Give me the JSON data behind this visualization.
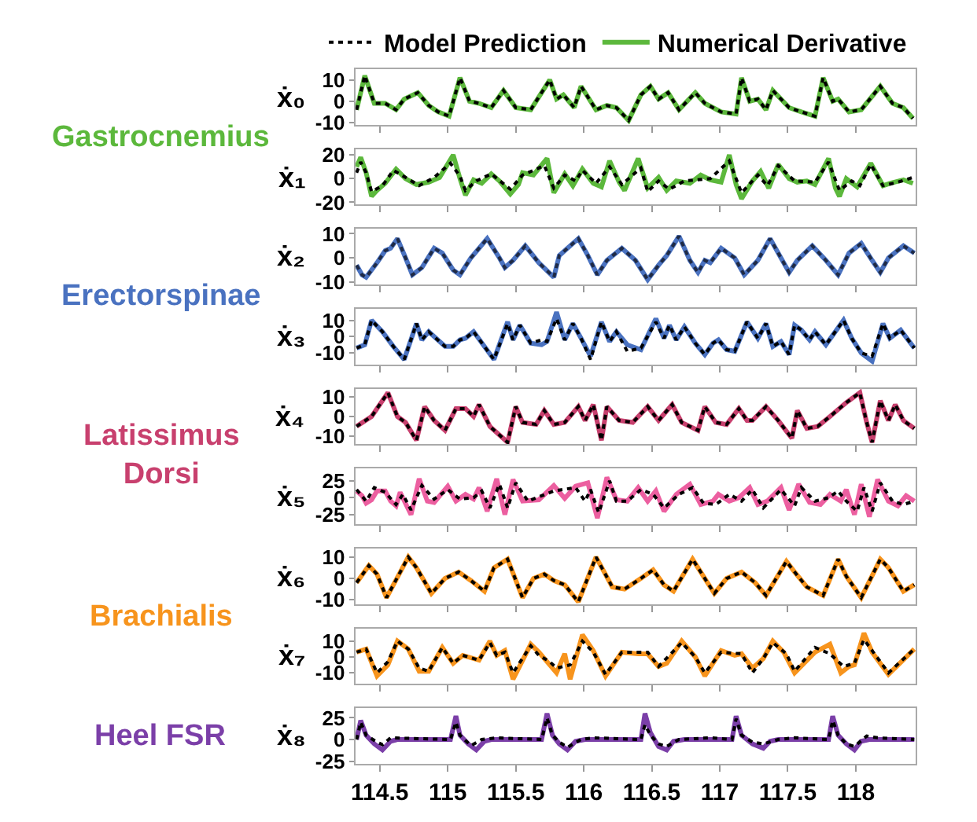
{
  "chart_data": [
    {
      "type": "line",
      "ylabel": "ẋ₀",
      "legend": "top",
      "tick_labels": "y",
      "annotations": [
        "Gastrocnemius"
      ],
      "xlim": [
        114.32,
        118.44
      ],
      "ylim": [
        -11,
        15
      ],
      "xticks": [
        114.5,
        115,
        115.5,
        116,
        116.5,
        117,
        117.5,
        118
      ],
      "yticks": [
        -10,
        0,
        10
      ],
      "x": [
        114.33,
        114.39,
        114.46,
        114.54,
        114.62,
        114.68,
        114.78,
        114.86,
        114.93,
        115.01,
        115.09,
        115.16,
        115.23,
        115.32,
        115.41,
        115.5,
        115.61,
        115.75,
        115.8,
        115.85,
        115.93,
        115.98,
        116.09,
        116.17,
        116.24,
        116.33,
        116.42,
        116.49,
        116.55,
        116.62,
        116.7,
        116.82,
        116.89,
        117.01,
        117.12,
        117.16,
        117.22,
        117.28,
        117.34,
        117.39,
        117.51,
        117.6,
        117.7,
        117.76,
        117.83,
        117.87,
        117.95,
        118.04,
        118.18,
        118.27,
        118.35,
        118.42
      ],
      "series": [
        {
          "name": "Model Prediction",
          "color": "#000000",
          "line_style": "dotted",
          "values": [
            -4,
            12,
            -1,
            -1,
            -4,
            1,
            4,
            -2,
            -5,
            -7,
            11,
            0,
            -1,
            -3,
            5,
            -3,
            -4,
            10,
            1,
            3,
            -3,
            7,
            -4,
            -2,
            -3,
            -9,
            3,
            7,
            1,
            4,
            -4,
            4,
            -1,
            -5,
            -6,
            11,
            0,
            1,
            -4,
            5,
            -3,
            -5,
            -7,
            11,
            0,
            1,
            -5,
            -4,
            7,
            -1,
            -3,
            -8
          ]
        },
        {
          "name": "Numerical Derivative",
          "color": "#5cb83c",
          "line_style": "solid",
          "values": [
            -4,
            12,
            -1,
            -1,
            -4,
            1,
            4,
            -2,
            -5,
            -7,
            11,
            0,
            -1,
            -3,
            5,
            -3,
            -4,
            10,
            1,
            3,
            -3,
            7,
            -4,
            -2,
            -3,
            -9,
            3,
            7,
            1,
            4,
            -4,
            4,
            -1,
            -5,
            -6,
            11,
            0,
            1,
            -4,
            5,
            -3,
            -5,
            -7,
            11,
            0,
            1,
            -5,
            -4,
            7,
            -1,
            -3,
            -8
          ]
        }
      ]
    },
    {
      "type": "line",
      "ylabel": "ẋ₁",
      "tick_labels": "y",
      "xlim": [
        114.32,
        118.44
      ],
      "ylim": [
        -22,
        25
      ],
      "xticks": [
        114.5,
        115,
        115.5,
        116,
        116.5,
        117,
        117.5,
        118
      ],
      "yticks": [
        -20,
        0,
        20
      ],
      "series": [
        {
          "color": "#000000",
          "line_style": "dotted",
          "x": [
            114.33,
            114.36,
            114.4,
            114.44,
            114.52,
            114.6,
            114.69,
            114.79,
            114.9,
            115.02,
            115.09,
            115.13,
            115.21,
            115.32,
            115.46,
            115.55,
            115.71,
            115.78,
            115.86,
            115.94,
            115.99,
            116.09,
            116.19,
            116.28,
            116.42,
            116.47,
            116.55,
            116.63,
            116.74,
            116.93,
            117.07,
            117.16,
            117.28,
            117.35,
            117.43,
            117.55,
            117.7,
            117.8,
            117.88,
            117.97,
            118.03,
            118.11,
            118.2,
            118.31,
            118.42
          ],
          "values": [
            5,
            14,
            5,
            -11,
            -6,
            7,
            1,
            -6,
            1,
            13,
            2,
            -10,
            -2,
            4,
            -9,
            3,
            11,
            -8,
            3,
            -2,
            7,
            -4,
            10,
            -5,
            9,
            -11,
            -2,
            -9,
            -2,
            0,
            15,
            -12,
            3,
            -6,
            11,
            -2,
            -3,
            14,
            -10,
            -2,
            -6,
            12,
            -6,
            -3,
            1
          ]
        },
        {
          "color": "#5cb83c",
          "line_style": "solid",
          "x": [
            114.33,
            114.36,
            114.4,
            114.44,
            114.48,
            114.54,
            114.62,
            114.69,
            114.77,
            114.86,
            114.94,
            115.04,
            115.09,
            115.13,
            115.19,
            115.25,
            115.32,
            115.38,
            115.46,
            115.52,
            115.55,
            115.63,
            115.73,
            115.78,
            115.86,
            115.92,
            115.99,
            116.07,
            116.13,
            116.19,
            116.26,
            116.3,
            116.4,
            116.47,
            116.55,
            116.61,
            116.68,
            116.78,
            116.86,
            116.93,
            117.01,
            117.07,
            117.12,
            117.16,
            117.24,
            117.3,
            117.36,
            117.43,
            117.51,
            117.57,
            117.64,
            117.7,
            117.8,
            117.85,
            117.88,
            117.93,
            118.01,
            118.11,
            118.2,
            118.25,
            118.35,
            118.42
          ],
          "values": [
            10,
            18,
            5,
            -15,
            -10,
            -4,
            8,
            0,
            -5,
            -3,
            1,
            20,
            0,
            -14,
            -1,
            -4,
            4,
            -2,
            -13,
            -5,
            5,
            3,
            17,
            -12,
            4,
            -6,
            8,
            -4,
            -7,
            15,
            -3,
            -10,
            17,
            -8,
            1,
            -10,
            -2,
            -4,
            3,
            -1,
            -3,
            20,
            -5,
            -17,
            -2,
            6,
            -8,
            12,
            0,
            -3,
            -2,
            -5,
            17,
            -8,
            -15,
            0,
            -7,
            13,
            -6,
            -4,
            -1,
            -4
          ]
        }
      ]
    },
    {
      "type": "line",
      "ylabel": "ẋ₂",
      "tick_labels": "y",
      "annotations": [
        "Erectorspinae"
      ],
      "xlim": [
        114.32,
        118.44
      ],
      "ylim": [
        -11,
        12
      ],
      "xticks": [
        114.5,
        115,
        115.5,
        116,
        116.5,
        117,
        117.5,
        118
      ],
      "yticks": [
        -10,
        0,
        10
      ],
      "x": [
        114.33,
        114.37,
        114.4,
        114.48,
        114.54,
        114.58,
        114.63,
        114.69,
        114.74,
        114.81,
        114.9,
        114.96,
        115.04,
        115.09,
        115.17,
        115.29,
        115.38,
        115.42,
        115.48,
        115.57,
        115.67,
        115.78,
        115.82,
        115.86,
        115.96,
        116.03,
        116.1,
        116.17,
        116.28,
        116.38,
        116.47,
        116.55,
        116.61,
        116.7,
        116.78,
        116.84,
        116.89,
        116.93,
        117.01,
        117.11,
        117.18,
        117.28,
        117.37,
        117.45,
        117.51,
        117.57,
        117.68,
        117.78,
        117.87,
        117.95,
        118.04,
        118.12,
        118.18,
        118.24,
        118.35,
        118.43
      ],
      "series": [
        {
          "color": "#1f2a44",
          "line_style": "dotted",
          "values": [
            -3,
            -7,
            -8,
            -2,
            3,
            4,
            8,
            0,
            -7,
            -4,
            4,
            2,
            -5,
            -7,
            0,
            8,
            0,
            -4,
            -1,
            5,
            -2,
            -8,
            1,
            3,
            8,
            1,
            -7,
            -1,
            4,
            -1,
            -9,
            -3,
            1,
            9,
            -1,
            -6,
            -1,
            -2,
            4,
            0,
            -7,
            -1,
            8,
            0,
            -6,
            -1,
            5,
            -1,
            -7,
            2,
            6,
            -1,
            -6,
            0,
            5,
            2
          ]
        },
        {
          "color": "#4a72c0",
          "line_style": "solid",
          "values": [
            -3,
            -7,
            -8,
            -2,
            3,
            4,
            8,
            0,
            -7,
            -4,
            4,
            2,
            -5,
            -7,
            0,
            8,
            0,
            -4,
            -1,
            5,
            -2,
            -8,
            1,
            3,
            8,
            1,
            -7,
            -1,
            4,
            -1,
            -9,
            -3,
            1,
            9,
            -1,
            -6,
            -1,
            -2,
            4,
            0,
            -7,
            -1,
            8,
            0,
            -6,
            -1,
            5,
            -1,
            -7,
            2,
            6,
            -1,
            -6,
            0,
            5,
            2
          ]
        }
      ]
    },
    {
      "type": "line",
      "ylabel": "ẋ₃",
      "tick_labels": "y",
      "xlim": [
        114.32,
        118.44
      ],
      "ylim": [
        -17,
        17
      ],
      "xticks": [
        114.5,
        115,
        115.5,
        116,
        116.5,
        117,
        117.5,
        118
      ],
      "yticks": [
        -10,
        0,
        10
      ],
      "x": [
        114.33,
        114.39,
        114.44,
        114.52,
        114.6,
        114.68,
        114.77,
        114.81,
        114.86,
        114.98,
        115.04,
        115.09,
        115.13,
        115.19,
        115.34,
        115.44,
        115.48,
        115.53,
        115.61,
        115.69,
        115.73,
        115.8,
        115.86,
        115.92,
        115.98,
        116.05,
        116.13,
        116.19,
        116.24,
        116.32,
        116.42,
        116.53,
        116.59,
        116.63,
        116.68,
        116.74,
        116.82,
        116.89,
        116.95,
        116.99,
        117.05,
        117.11,
        117.2,
        117.28,
        117.34,
        117.39,
        117.45,
        117.51,
        117.55,
        117.6,
        117.66,
        117.7,
        117.78,
        117.91,
        117.97,
        118.04,
        118.12,
        118.2,
        118.25,
        118.33,
        118.43
      ],
      "series": [
        {
          "color": "#000000",
          "line_style": "dotted",
          "values": [
            -7,
            -5,
            10,
            3,
            -6,
            -14,
            8,
            -2,
            3,
            -6,
            -6,
            -2,
            -1,
            3,
            -14,
            8,
            -2,
            7,
            -4,
            -2,
            -3,
            11,
            -2,
            8,
            -1,
            -14,
            9,
            -3,
            3,
            -9,
            -7,
            9,
            -1,
            7,
            -2,
            6,
            -4,
            -11,
            -4,
            -2,
            -8,
            -9,
            9,
            -1,
            8,
            -6,
            -3,
            -11,
            7,
            4,
            -2,
            3,
            -5,
            10,
            -1,
            -10,
            -12,
            8,
            -1,
            4,
            -7
          ]
        },
        {
          "color": "#4a72c0",
          "line_style": "solid",
          "values": [
            -7,
            -5,
            10,
            3,
            -6,
            -14,
            8,
            -2,
            3,
            -6,
            -6,
            -2,
            -1,
            3,
            -14,
            9,
            -2,
            7,
            -4,
            -5,
            -3,
            15,
            -2,
            8,
            -1,
            -12,
            9,
            -3,
            3,
            -5,
            -8,
            11,
            -1,
            7,
            -2,
            6,
            -4,
            -11,
            -4,
            -2,
            -8,
            -9,
            9,
            -1,
            8,
            -6,
            -3,
            -11,
            7,
            4,
            -2,
            3,
            -5,
            10,
            -1,
            -10,
            -15,
            8,
            -1,
            4,
            -7
          ]
        }
      ]
    },
    {
      "type": "line",
      "ylabel": "ẋ₄",
      "tick_labels": "y",
      "annotations": [
        "Latissimus\nDorsi"
      ],
      "xlim": [
        114.32,
        118.44
      ],
      "ylim": [
        -14,
        14
      ],
      "xticks": [
        114.5,
        115,
        115.5,
        116,
        116.5,
        117,
        117.5,
        118
      ],
      "yticks": [
        -10,
        0,
        10
      ],
      "x": [
        114.33,
        114.44,
        114.56,
        114.63,
        114.69,
        114.77,
        114.83,
        114.9,
        114.98,
        115.06,
        115.13,
        115.19,
        115.23,
        115.31,
        115.44,
        115.5,
        115.55,
        115.65,
        115.71,
        115.78,
        115.86,
        115.96,
        116.01,
        116.07,
        116.13,
        116.17,
        116.26,
        116.36,
        116.47,
        116.55,
        116.65,
        116.72,
        116.84,
        116.89,
        116.97,
        117.05,
        117.14,
        117.2,
        117.24,
        117.34,
        117.43,
        117.53,
        117.57,
        117.64,
        117.72,
        117.81,
        117.93,
        118.03,
        118.08,
        118.12,
        118.18,
        118.24,
        118.29,
        118.35,
        118.43
      ],
      "series": [
        {
          "color": "#000000",
          "line_style": "dotted",
          "values": [
            -5,
            0,
            12,
            0,
            -3,
            -12,
            5,
            -2,
            -7,
            4,
            4,
            0,
            6,
            -5,
            -13,
            5,
            -3,
            -4,
            3,
            -4,
            -3,
            5,
            -2,
            6,
            -12,
            5,
            -2,
            -3,
            5,
            -2,
            6,
            -3,
            -7,
            5,
            -3,
            -4,
            4,
            -2,
            -2,
            5,
            -2,
            -11,
            3,
            -6,
            -5,
            0,
            7,
            12,
            -3,
            -13,
            8,
            -2,
            6,
            -2,
            -6
          ]
        },
        {
          "color": "#c8406e",
          "line_style": "solid",
          "values": [
            -5,
            0,
            12,
            0,
            -3,
            -12,
            5,
            -2,
            -7,
            4,
            4,
            0,
            6,
            -5,
            -13,
            5,
            -3,
            -4,
            3,
            -4,
            -3,
            5,
            -2,
            6,
            -12,
            5,
            -2,
            -3,
            5,
            -2,
            6,
            -3,
            -7,
            5,
            -3,
            -4,
            4,
            -2,
            -2,
            5,
            -2,
            -11,
            3,
            -6,
            -5,
            0,
            7,
            12,
            -3,
            -13,
            8,
            -2,
            6,
            -2,
            -6
          ]
        }
      ]
    },
    {
      "type": "line",
      "ylabel": "ẋ₅",
      "tick_labels": "y",
      "xlim": [
        114.32,
        118.44
      ],
      "ylim": [
        -39,
        43
      ],
      "xticks": [
        114.5,
        115,
        115.5,
        116,
        116.5,
        117,
        117.5,
        118
      ],
      "yticks": [
        -25,
        0,
        25
      ],
      "series": [
        {
          "color": "#000000",
          "line_style": "dotted",
          "x": [
            114.33,
            114.4,
            114.46,
            114.54,
            114.62,
            114.67,
            114.73,
            114.81,
            114.9,
            115.0,
            115.09,
            115.19,
            115.25,
            115.31,
            115.38,
            115.44,
            115.5,
            115.59,
            115.78,
            115.94,
            116.01,
            116.05,
            116.11,
            116.19,
            116.24,
            116.32,
            116.42,
            116.51,
            116.59,
            116.7,
            116.8,
            116.88,
            116.97,
            117.07,
            117.16,
            117.24,
            117.32,
            117.45,
            117.55,
            117.6,
            117.7,
            117.8,
            117.87,
            117.93,
            118.01,
            118.06,
            118.12,
            118.18,
            118.27,
            118.35,
            118.43
          ],
          "values": [
            12,
            -5,
            15,
            8,
            -10,
            5,
            -18,
            18,
            -2,
            12,
            -2,
            0,
            10,
            -15,
            20,
            -15,
            22,
            -5,
            10,
            15,
            -5,
            12,
            -22,
            25,
            -5,
            -5,
            12,
            5,
            -15,
            5,
            15,
            -8,
            -10,
            5,
            -5,
            12,
            -15,
            12,
            -12,
            15,
            -5,
            0,
            10,
            -5,
            -20,
            15,
            -20,
            22,
            -5,
            -10,
            -5
          ]
        },
        {
          "color": "#ec5fa0",
          "line_style": "solid",
          "x": [
            114.33,
            114.37,
            114.4,
            114.44,
            114.48,
            114.54,
            114.58,
            114.62,
            114.65,
            114.73,
            114.79,
            114.85,
            114.9,
            115.0,
            115.06,
            115.13,
            115.19,
            115.23,
            115.29,
            115.36,
            115.42,
            115.48,
            115.55,
            115.67,
            115.78,
            115.86,
            115.94,
            116.03,
            116.1,
            116.17,
            116.24,
            116.32,
            116.4,
            116.47,
            116.53,
            116.59,
            116.68,
            116.78,
            116.86,
            116.95,
            116.99,
            117.07,
            117.14,
            117.22,
            117.28,
            117.35,
            117.45,
            117.51,
            117.58,
            117.66,
            117.74,
            117.81,
            117.89,
            117.93,
            117.99,
            118.04,
            118.1,
            118.16,
            118.24,
            118.31,
            118.37,
            118.43
          ],
          "values": [
            10,
            3,
            -8,
            -3,
            10,
            10,
            -5,
            -12,
            8,
            -25,
            28,
            -5,
            -7,
            17,
            -5,
            5,
            -2,
            15,
            -20,
            28,
            -25,
            27,
            -5,
            -3,
            18,
            -1,
            17,
            22,
            -30,
            30,
            -3,
            -5,
            15,
            -5,
            10,
            -20,
            5,
            20,
            -10,
            -5,
            5,
            -5,
            0,
            15,
            -10,
            -5,
            15,
            -18,
            20,
            -7,
            -10,
            5,
            -5,
            12,
            -25,
            20,
            -28,
            27,
            -5,
            -12,
            3,
            -5
          ]
        }
      ]
    },
    {
      "type": "line",
      "ylabel": "ẋ₆",
      "tick_labels": "y",
      "annotations": [
        "Brachialis"
      ],
      "xlim": [
        114.32,
        118.44
      ],
      "ylim": [
        -12,
        14
      ],
      "xticks": [
        114.5,
        115,
        115.5,
        116,
        116.5,
        117,
        117.5,
        118
      ],
      "yticks": [
        -10,
        0,
        10
      ],
      "x": [
        114.33,
        114.42,
        114.48,
        114.55,
        114.71,
        114.77,
        114.88,
        114.98,
        115.08,
        115.17,
        115.27,
        115.34,
        115.44,
        115.55,
        115.63,
        115.71,
        115.78,
        115.86,
        115.96,
        116.09,
        116.21,
        116.3,
        116.42,
        116.51,
        116.59,
        116.66,
        116.8,
        116.88,
        116.96,
        117.05,
        117.16,
        117.26,
        117.34,
        117.49,
        117.55,
        117.64,
        117.76,
        117.87,
        117.93,
        118.04,
        118.18,
        118.24,
        118.35,
        118.43
      ],
      "series": [
        {
          "color": "#000000",
          "line_style": "dotted",
          "values": [
            -2,
            6,
            2,
            -9,
            10,
            5,
            -7,
            0,
            3,
            -1,
            -6,
            5,
            9,
            -9,
            0,
            2,
            -1,
            -3,
            -11,
            10,
            -4,
            -5,
            0,
            4,
            -3,
            -6,
            9,
            1,
            -7,
            0,
            3,
            -2,
            -8,
            8,
            3,
            -4,
            -8,
            9,
            1,
            -9,
            9,
            5,
            -6,
            -3
          ]
        },
        {
          "color": "#f7941d",
          "line_style": "solid",
          "values": [
            -2,
            6,
            2,
            -9,
            10,
            5,
            -7,
            0,
            3,
            -1,
            -6,
            5,
            9,
            -9,
            0,
            2,
            -1,
            -3,
            -11,
            10,
            -4,
            -5,
            0,
            4,
            -3,
            -6,
            9,
            1,
            -7,
            0,
            3,
            -2,
            -8,
            8,
            3,
            -4,
            -8,
            9,
            1,
            -9,
            9,
            5,
            -6,
            -3
          ]
        }
      ]
    },
    {
      "type": "line",
      "ylabel": "ẋ₇",
      "tick_labels": "y",
      "xlim": [
        114.32,
        118.44
      ],
      "ylim": [
        -17,
        18
      ],
      "xticks": [
        114.5,
        115,
        115.5,
        116,
        116.5,
        117,
        117.5,
        118
      ],
      "yticks": [
        -10,
        0,
        10
      ],
      "series": [
        {
          "color": "#000000",
          "line_style": "dotted",
          "x": [
            114.33,
            114.4,
            114.48,
            114.56,
            114.63,
            114.71,
            114.79,
            114.86,
            114.96,
            115.04,
            115.11,
            115.23,
            115.31,
            115.36,
            115.42,
            115.48,
            115.61,
            115.67,
            115.75,
            115.8,
            115.9,
            115.99,
            116.07,
            116.16,
            116.28,
            116.47,
            116.55,
            116.72,
            116.82,
            116.89,
            117.01,
            117.16,
            117.24,
            117.32,
            117.39,
            117.49,
            117.55,
            117.7,
            117.81,
            117.91,
            117.99,
            118.06,
            118.12,
            118.24,
            118.43
          ],
          "values": [
            3,
            5,
            -10,
            -3,
            10,
            5,
            -7,
            -9,
            6,
            -4,
            1,
            -2,
            9,
            1,
            3,
            -10,
            7,
            1,
            -3,
            -7,
            -5,
            10,
            3,
            -11,
            3,
            3,
            -6,
            9,
            0,
            -10,
            3,
            2,
            -10,
            -1,
            9,
            2,
            -9,
            6,
            2,
            -6,
            -4,
            11,
            4,
            -10,
            5
          ]
        },
        {
          "color": "#f7941d",
          "line_style": "solid",
          "x": [
            114.33,
            114.4,
            114.48,
            114.56,
            114.63,
            114.71,
            114.79,
            114.86,
            114.96,
            115.04,
            115.11,
            115.23,
            115.31,
            115.36,
            115.42,
            115.48,
            115.61,
            115.67,
            115.75,
            115.8,
            115.86,
            115.9,
            115.99,
            116.07,
            116.16,
            116.28,
            116.4,
            116.47,
            116.55,
            116.61,
            116.72,
            116.82,
            116.89,
            117.01,
            117.11,
            117.16,
            117.24,
            117.32,
            117.39,
            117.47,
            117.55,
            117.7,
            117.81,
            117.89,
            117.95,
            117.99,
            118.06,
            118.12,
            118.24,
            118.43
          ],
          "values": [
            3,
            5,
            -12,
            -5,
            10,
            5,
            -9,
            -9,
            6,
            -4,
            1,
            -2,
            10,
            1,
            4,
            -14,
            8,
            3,
            -5,
            -10,
            2,
            -14,
            14,
            4,
            -12,
            3,
            2,
            2,
            -6,
            -4,
            10,
            0,
            -12,
            4,
            1,
            2,
            -7,
            -1,
            10,
            3,
            -10,
            3,
            8,
            -10,
            -6,
            -5,
            15,
            3,
            -11,
            5
          ]
        }
      ]
    },
    {
      "type": "line",
      "ylabel": "ẋ₈",
      "annotations": [
        "Heel FSR"
      ],
      "xlim": [
        114.32,
        118.44
      ],
      "ylim": [
        -28,
        36
      ],
      "xticks": [
        114.5,
        115,
        115.5,
        116,
        116.5,
        117,
        117.5,
        118
      ],
      "yticks": [
        -25,
        0,
        25
      ],
      "series": [
        {
          "color": "#000000",
          "line_style": "dotted",
          "x": [
            114.33,
            114.36,
            114.4,
            114.48,
            114.52,
            114.58,
            114.79,
            115.02,
            115.06,
            115.09,
            115.17,
            115.25,
            115.36,
            115.69,
            115.73,
            115.77,
            115.82,
            115.88,
            115.98,
            116.07,
            116.42,
            116.45,
            116.49,
            116.55,
            116.61,
            116.7,
            116.93,
            117.09,
            117.12,
            117.16,
            117.24,
            117.32,
            117.43,
            117.55,
            117.8,
            117.83,
            117.87,
            117.93,
            117.99,
            118.08,
            118.16,
            118.43
          ],
          "values": [
            0,
            20,
            5,
            -3,
            -6,
            2,
            1,
            0,
            20,
            5,
            -7,
            0,
            2,
            0,
            25,
            5,
            -3,
            -9,
            0,
            2,
            0,
            17,
            5,
            -5,
            -8,
            0,
            2,
            0,
            24,
            5,
            -3,
            -5,
            0,
            2,
            0,
            22,
            5,
            -5,
            -8,
            4,
            2,
            0
          ]
        },
        {
          "color": "#7b3fa8",
          "line_style": "solid",
          "x": [
            114.33,
            114.36,
            114.4,
            114.46,
            114.52,
            114.58,
            114.63,
            115.02,
            115.06,
            115.09,
            115.15,
            115.21,
            115.27,
            115.32,
            115.69,
            115.73,
            115.77,
            115.82,
            115.88,
            115.94,
            116.01,
            116.42,
            116.45,
            116.49,
            116.55,
            116.61,
            116.66,
            116.74,
            117.09,
            117.12,
            117.16,
            117.24,
            117.32,
            117.37,
            117.43,
            117.8,
            117.83,
            117.87,
            117.93,
            117.99,
            118.04,
            118.1,
            118.43
          ],
          "values": [
            0,
            22,
            5,
            -5,
            -12,
            -2,
            0,
            0,
            27,
            5,
            -5,
            -12,
            -2,
            0,
            0,
            30,
            5,
            -5,
            -12,
            -2,
            0,
            0,
            30,
            8,
            -8,
            -12,
            -2,
            0,
            0,
            27,
            5,
            -5,
            -10,
            -2,
            0,
            0,
            27,
            5,
            -5,
            -12,
            -2,
            0,
            0
          ]
        }
      ]
    }
  ]
}
